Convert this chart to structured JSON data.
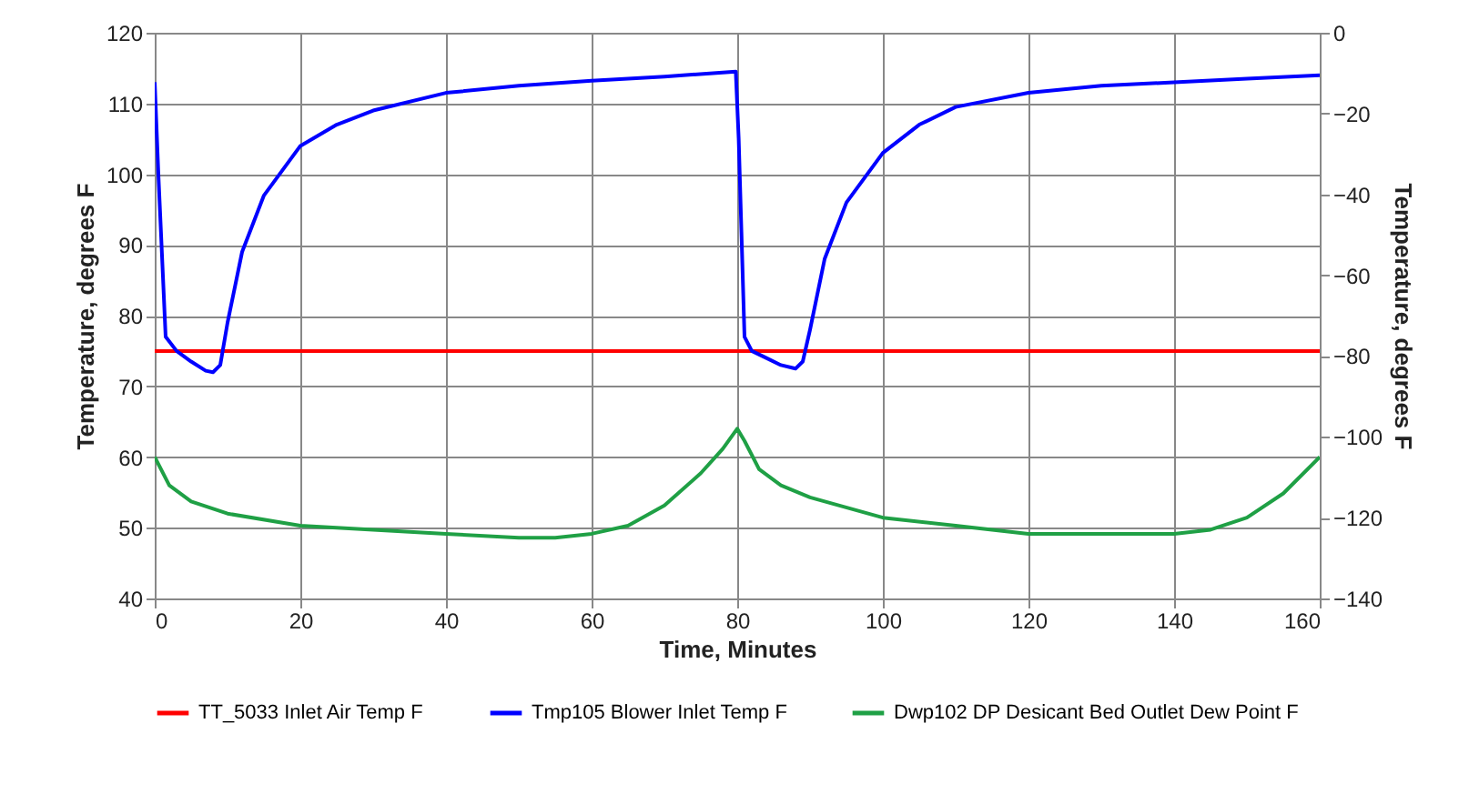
{
  "chart_data": {
    "type": "line",
    "xlabel": "Time, Minutes",
    "ylabel": "Temperature, degrees F",
    "y2label": "Temperature, degrees F",
    "xlim": [
      0,
      160
    ],
    "xticks": [
      0,
      20,
      40,
      60,
      80,
      100,
      120,
      140,
      160
    ],
    "ylim": [
      40,
      120
    ],
    "yticks": [
      40,
      50,
      60,
      70,
      80,
      90,
      100,
      110,
      120
    ],
    "y2lim": [
      -140,
      0
    ],
    "y2ticks": [
      -140,
      -120,
      -100,
      -80,
      -60,
      -40,
      -20,
      0
    ],
    "grid": true,
    "legend": "bottom",
    "marker": "none",
    "line_style": "solid",
    "series": [
      {
        "name": "TT_5033 Inlet Air Temp F",
        "color": "#ff0000",
        "x": [
          0,
          10,
          20,
          30,
          40,
          50,
          60,
          70,
          80,
          90,
          100,
          110,
          120,
          130,
          140,
          150,
          160
        ],
        "values": [
          75,
          75,
          75,
          75,
          75,
          75,
          75,
          75,
          75,
          75,
          75,
          75,
          75,
          75,
          75,
          75,
          75
        ]
      },
      {
        "name": "Tmp105 Blower Inlet Temp F",
        "color": "#0000ff",
        "x": [
          0,
          0.5,
          1.5,
          3,
          5,
          7,
          8,
          9,
          10,
          12,
          15,
          20,
          25,
          30,
          40,
          50,
          60,
          70,
          79.8,
          80.2,
          81,
          82,
          84,
          86,
          88,
          89,
          90,
          92,
          95,
          100,
          105,
          110,
          120,
          130,
          140,
          150,
          160
        ],
        "values": [
          113,
          100,
          77,
          75,
          73.5,
          72.2,
          72,
          73,
          79,
          89,
          97,
          104,
          107,
          109,
          111.5,
          112.5,
          113.2,
          113.8,
          114.5,
          105,
          77,
          75,
          74,
          73,
          72.5,
          73.5,
          78,
          88,
          96,
          103,
          107,
          109.5,
          111.5,
          112.5,
          113,
          113.5,
          114
        ]
      },
      {
        "name": "Dwp102 DP Desicant Bed Outlet Dew Point F",
        "color": "#1fa045",
        "axis": "y2",
        "x": [
          0,
          2,
          5,
          10,
          20,
          30,
          40,
          50,
          55,
          60,
          65,
          70,
          75,
          78,
          80,
          81,
          83,
          86,
          90,
          100,
          110,
          120,
          130,
          140,
          145,
          150,
          155,
          160
        ],
        "values": [
          -105,
          -112,
          -116,
          -119,
          -122,
          -123,
          -124,
          -125,
          -125,
          -124,
          -122,
          -117,
          -109,
          -103,
          -98,
          -101,
          -108,
          -112,
          -115,
          -120,
          -122,
          -124,
          -124,
          -124,
          -123,
          -120,
          -114,
          -105
        ]
      }
    ]
  }
}
